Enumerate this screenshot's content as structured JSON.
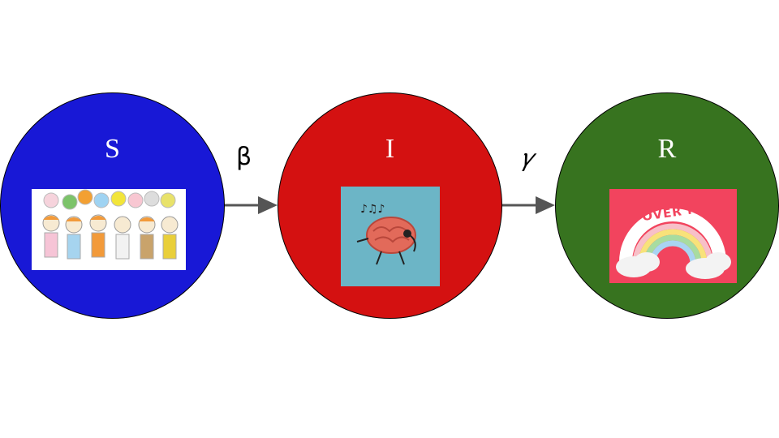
{
  "nodes": {
    "s": {
      "label": "S",
      "color": "#1818d6"
    },
    "i": {
      "label": "I",
      "color": "#d41111"
    },
    "r": {
      "label": "R",
      "color": "#37731f"
    }
  },
  "rates": {
    "s_to_i": "β",
    "i_to_r": "𝛾"
  },
  "images": {
    "s": "people-with-speech-bubbles-illustration",
    "i": "dancing-brain-with-headphones-illustration",
    "r": "over-it-rainbow-illustration",
    "r_text": "OVER IT"
  }
}
